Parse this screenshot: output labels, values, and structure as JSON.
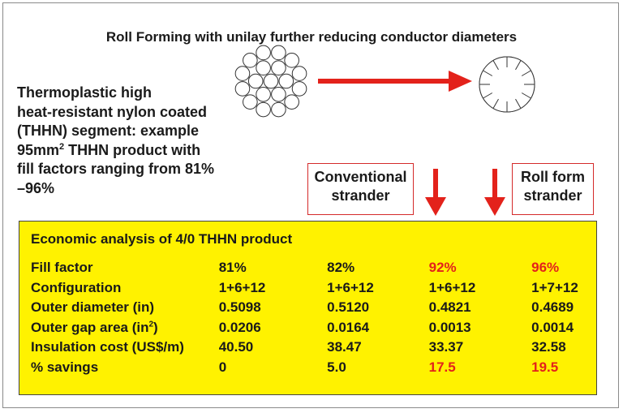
{
  "title": "Roll Forming with unilay further reducing conductor diameters",
  "description": {
    "line1": "Thermoplastic high",
    "line2": "heat-resistant nylon coated",
    "line3": "(THHN) segment: example",
    "line4_a": "95mm",
    "line4_sup": "2",
    "line4_b": " THHN product with",
    "line5": "fill factors ranging from 81%",
    "line6": "–96%"
  },
  "labels": {
    "conventional_line1": "Conventional",
    "conventional_line2": "strander",
    "rollform_line1": "Roll form",
    "rollform_line2": "strander"
  },
  "colors": {
    "arrow": "#e3221b",
    "panel": "#fff200",
    "highlight": "#e3221b"
  },
  "table": {
    "title": "Economic analysis of 4/0 THHN product",
    "rows": [
      {
        "label": "Fill factor",
        "values": [
          "81%",
          "82%",
          "92%",
          "96%"
        ]
      },
      {
        "label": "Configuration",
        "values": [
          "1+6+12",
          "1+6+12",
          "1+6+12",
          "1+7+12"
        ]
      },
      {
        "label": "Outer diameter (in)",
        "values": [
          "0.5098",
          "0.5120",
          "0.4821",
          "0.4689"
        ]
      },
      {
        "label_a": "Outer gap area (in",
        "label_sup": "2",
        "label_b": ")",
        "values": [
          "0.0206",
          "0.0164",
          "0.0013",
          "0.0014"
        ]
      },
      {
        "label": "Insulation cost (US$/m)",
        "values": [
          "40.50",
          "38.47",
          "33.37",
          "32.58"
        ]
      },
      {
        "label": "% savings",
        "values": [
          "0",
          "5.0",
          "17.5",
          "19.5"
        ]
      }
    ]
  }
}
